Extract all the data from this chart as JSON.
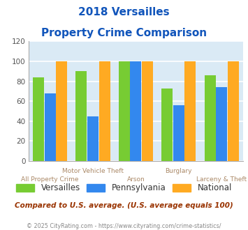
{
  "title_line1": "2018 Versailles",
  "title_line2": "Property Crime Comparison",
  "categories": [
    "All Property Crime",
    "Motor Vehicle Theft",
    "Arson",
    "Burglary",
    "Larceny & Theft"
  ],
  "versailles": [
    84,
    90,
    100,
    73,
    86
  ],
  "pennsylvania": [
    68,
    45,
    100,
    56,
    74
  ],
  "national": [
    100,
    100,
    100,
    100,
    100
  ],
  "color_versailles": "#77cc33",
  "color_pennsylvania": "#3388ee",
  "color_national": "#ffaa22",
  "ylim": [
    0,
    120
  ],
  "yticks": [
    0,
    20,
    40,
    60,
    80,
    100,
    120
  ],
  "bg_color": "#daeaf5",
  "title_color": "#1155bb",
  "xlabel_color_upper": "#aa8866",
  "xlabel_color_lower": "#aa8866",
  "note_color": "#993300",
  "footer_color": "#888888",
  "legend_text_color": "#333333",
  "note": "Compared to U.S. average. (U.S. average equals 100)",
  "footer": "© 2025 CityRating.com - https://www.cityrating.com/crime-statistics/"
}
